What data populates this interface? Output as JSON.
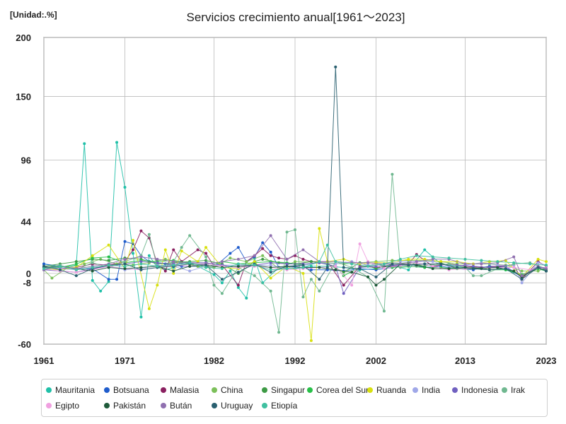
{
  "chart_data": {
    "type": "line",
    "title": "Servicios crecimiento anual[1961～2023]",
    "unit_label": "[Unidad:.%]",
    "xlim": [
      1961,
      2023
    ],
    "ylim": [
      -60,
      200
    ],
    "yticks": [
      "200",
      "150",
      "96",
      "44",
      "0",
      "-8",
      "-60"
    ],
    "ytick_values": [
      200,
      150,
      96,
      44,
      0,
      -8,
      -60
    ],
    "xticks": [
      "1961",
      "1971",
      "1982",
      "1992",
      "2002",
      "2013",
      "2023"
    ],
    "xtick_values": [
      1961,
      1971,
      1982,
      1992,
      2002,
      2013,
      2023
    ],
    "grid": true,
    "legend_position": "bottom",
    "series": [
      {
        "name": "Mauritania",
        "color": "#20c0a8",
        "x": [
          1961,
          1963,
          1965,
          1966,
          1967,
          1968,
          1969,
          1970,
          1971,
          1972,
          1973,
          1974,
          1975,
          1976,
          1977,
          1978,
          1980,
          1982,
          1983,
          1984,
          1985,
          1986,
          1987,
          1988,
          1990,
          1992,
          1994,
          1996,
          1998,
          2000,
          2002,
          2004,
          2006,
          2008,
          2010,
          2012,
          2014,
          2016,
          2018,
          2020,
          2022,
          2023
        ],
        "y": [
          8,
          5,
          7,
          110,
          -6,
          -15,
          -7,
          111,
          73,
          17,
          -37,
          15,
          5,
          3,
          5,
          10,
          6,
          -1,
          -8,
          2,
          -12,
          -21,
          13,
          -8,
          5,
          4,
          6,
          6,
          5,
          3,
          4,
          7,
          3,
          20,
          8,
          6,
          4,
          6,
          3,
          -2,
          4,
          2
        ]
      },
      {
        "name": "Botsuana",
        "color": "#1f5ccc",
        "x": [
          1961,
          1963,
          1965,
          1967,
          1969,
          1970,
          1971,
          1972,
          1973,
          1974,
          1975,
          1976,
          1978,
          1980,
          1982,
          1984,
          1985,
          1986,
          1987,
          1988,
          1989,
          1990,
          1992,
          1994,
          1996,
          1998,
          2000,
          2002,
          2004,
          2006,
          2008,
          2010,
          2012,
          2014,
          2016,
          2018,
          2020,
          2022,
          2023
        ],
        "y": [
          8,
          6,
          4,
          4,
          -5,
          -5,
          27,
          25,
          15,
          10,
          9,
          8,
          6,
          6,
          5,
          17,
          22,
          10,
          14,
          26,
          18,
          5,
          6,
          3,
          3,
          2,
          4,
          3,
          5,
          8,
          5,
          6,
          4,
          3,
          6,
          5,
          -3,
          6,
          3
        ]
      },
      {
        "name": "Malasia",
        "color": "#8a2060",
        "x": [
          1961,
          1963,
          1965,
          1967,
          1969,
          1971,
          1972,
          1973,
          1974,
          1975,
          1976,
          1977,
          1978,
          1980,
          1981,
          1982,
          1983,
          1985,
          1986,
          1987,
          1988,
          1989,
          1990,
          1991,
          1992,
          1993,
          1994,
          1996,
          1998,
          2000,
          2002,
          2004,
          2006,
          2007,
          2009,
          2011,
          2013,
          2015,
          2017,
          2019,
          2020,
          2022,
          2023
        ],
        "y": [
          6,
          4,
          5,
          8,
          7,
          10,
          20,
          36,
          30,
          8,
          2,
          20,
          10,
          20,
          17,
          6,
          7,
          -10,
          10,
          15,
          21,
          15,
          13,
          12,
          15,
          12,
          10,
          10,
          -10,
          6,
          5,
          6,
          8,
          16,
          6,
          8,
          6,
          5,
          6,
          7,
          -5,
          10,
          6
        ]
      },
      {
        "name": "China",
        "color": "#7cc05a",
        "x": [
          1961,
          1962,
          1964,
          1966,
          1968,
          1970,
          1972,
          1974,
          1976,
          1978,
          1980,
          1982,
          1984,
          1986,
          1988,
          1990,
          1992,
          1994,
          1996,
          1998,
          2000,
          2002,
          2004,
          2006,
          2008,
          2010,
          2012,
          2014,
          2016,
          2018,
          2020,
          2022,
          2023
        ],
        "y": [
          3,
          -4,
          5,
          8,
          12,
          8,
          7,
          9,
          12,
          9,
          6,
          5,
          13,
          10,
          15,
          4,
          10,
          10,
          9,
          8,
          9,
          10,
          11,
          11,
          11,
          10,
          8,
          8,
          8,
          7,
          2,
          2,
          5
        ]
      },
      {
        "name": "Singapur",
        "color": "#3d9a45",
        "x": [
          1961,
          1963,
          1965,
          1967,
          1969,
          1971,
          1973,
          1975,
          1977,
          1979,
          1981,
          1983,
          1985,
          1987,
          1988,
          1990,
          1992,
          1994,
          1996,
          1998,
          2000,
          2002,
          2004,
          2006,
          2008,
          2010,
          2012,
          2014,
          2016,
          2018,
          2020,
          2022,
          2023
        ],
        "y": [
          6,
          8,
          10,
          12,
          11,
          13,
          12,
          8,
          9,
          10,
          11,
          8,
          0,
          10,
          12,
          9,
          8,
          10,
          8,
          1,
          9,
          4,
          8,
          9,
          6,
          9,
          4,
          5,
          3,
          4,
          -2,
          4,
          3
        ]
      },
      {
        "name": "Corea del Sur",
        "color": "#28c048",
        "x": [
          1961,
          1963,
          1965,
          1967,
          1969,
          1971,
          1973,
          1975,
          1977,
          1979,
          1981,
          1983,
          1985,
          1987,
          1989,
          1991,
          1993,
          1995,
          1997,
          1998,
          2000,
          2002,
          2004,
          2006,
          2008,
          2010,
          2012,
          2014,
          2016,
          2018,
          2020,
          2022,
          2023
        ],
        "y": [
          4,
          5,
          8,
          13,
          14,
          9,
          11,
          10,
          11,
          9,
          5,
          10,
          8,
          9,
          10,
          9,
          7,
          9,
          6,
          -2,
          5,
          8,
          5,
          6,
          5,
          5,
          4,
          4,
          3,
          3,
          -1,
          4,
          2
        ]
      },
      {
        "name": "Ruanda",
        "color": "#d8e010",
        "x": [
          1961,
          1963,
          1965,
          1967,
          1969,
          1971,
          1972,
          1974,
          1975,
          1976,
          1977,
          1978,
          1980,
          1981,
          1983,
          1985,
          1987,
          1989,
          1991,
          1993,
          1994,
          1995,
          1996,
          1998,
          2000,
          2002,
          2004,
          2006,
          2008,
          2010,
          2012,
          2014,
          2016,
          2018,
          2020,
          2022,
          2023
        ],
        "y": [
          4,
          3,
          5,
          15,
          24,
          4,
          28,
          -30,
          -10,
          20,
          0,
          19,
          10,
          22,
          5,
          4,
          10,
          -4,
          6,
          0,
          -57,
          38,
          10,
          12,
          8,
          9,
          9,
          12,
          12,
          10,
          10,
          8,
          10,
          11,
          -3,
          12,
          10
        ]
      },
      {
        "name": "India",
        "color": "#a0a8e8",
        "x": [
          1961,
          1963,
          1965,
          1967,
          1969,
          1971,
          1973,
          1975,
          1977,
          1979,
          1981,
          1983,
          1985,
          1987,
          1989,
          1991,
          1993,
          1995,
          1997,
          1999,
          2001,
          2003,
          2005,
          2007,
          2009,
          2011,
          2013,
          2015,
          2017,
          2019,
          2020,
          2022,
          2023
        ],
        "y": [
          5,
          4,
          3,
          5,
          6,
          3,
          4,
          7,
          6,
          2,
          6,
          7,
          7,
          7,
          7,
          4,
          7,
          9,
          8,
          10,
          7,
          8,
          10,
          10,
          10,
          6,
          7,
          9,
          7,
          7,
          -8,
          9,
          7
        ]
      },
      {
        "name": "Indonesia",
        "color": "#7060c0",
        "x": [
          1961,
          1963,
          1965,
          1967,
          1969,
          1971,
          1973,
          1975,
          1977,
          1979,
          1981,
          1983,
          1985,
          1987,
          1989,
          1991,
          1993,
          1995,
          1997,
          1998,
          2000,
          2002,
          2004,
          2006,
          2008,
          2010,
          2012,
          2014,
          2016,
          2018,
          2020,
          2022,
          2023
        ],
        "y": [
          3,
          2,
          1,
          4,
          6,
          8,
          10,
          9,
          8,
          9,
          9,
          7,
          5,
          7,
          9,
          8,
          8,
          9,
          6,
          -17,
          5,
          6,
          7,
          7,
          8,
          8,
          7,
          6,
          5,
          6,
          -3,
          5,
          5
        ]
      },
      {
        "name": "Irak",
        "color": "#70b890",
        "x": [
          1961,
          1963,
          1965,
          1967,
          1969,
          1971,
          1973,
          1974,
          1975,
          1977,
          1978,
          1979,
          1981,
          1982,
          1983,
          1985,
          1987,
          1989,
          1990,
          1991,
          1992,
          1993,
          1994,
          1995,
          1997,
          1999,
          2001,
          2003,
          2004,
          2005,
          2007,
          2009,
          2011,
          2013,
          2014,
          2015,
          2017,
          2019,
          2021,
          2023
        ],
        "y": [
          5,
          7,
          3,
          9,
          5,
          10,
          15,
          33,
          5,
          10,
          22,
          32,
          14,
          -10,
          -17,
          5,
          -2,
          -15,
          -50,
          35,
          37,
          -20,
          -5,
          -15,
          10,
          5,
          -3,
          -32,
          84,
          5,
          6,
          7,
          8,
          5,
          -2,
          -2,
          4,
          8,
          9,
          4
        ]
      },
      {
        "name": "Egipto",
        "color": "#f0a0e0",
        "x": [
          1961,
          1963,
          1965,
          1967,
          1969,
          1971,
          1973,
          1975,
          1977,
          1979,
          1981,
          1983,
          1985,
          1987,
          1989,
          1991,
          1993,
          1995,
          1997,
          1999,
          2000,
          2001,
          2003,
          2005,
          2007,
          2009,
          2011,
          2013,
          2015,
          2017,
          2019,
          2021,
          2023
        ],
        "y": [
          4,
          2,
          1,
          3,
          6,
          4,
          3,
          5,
          7,
          6,
          8,
          6,
          5,
          6,
          5,
          3,
          4,
          5,
          6,
          -10,
          25,
          10,
          4,
          7,
          9,
          6,
          3,
          4,
          4,
          5,
          5,
          3,
          5
        ]
      },
      {
        "name": "Pakistán",
        "color": "#1e5a3a",
        "x": [
          1961,
          1963,
          1965,
          1967,
          1969,
          1971,
          1973,
          1975,
          1977,
          1979,
          1981,
          1983,
          1985,
          1987,
          1989,
          1991,
          1993,
          1995,
          1997,
          1999,
          2001,
          2002,
          2003,
          2005,
          2007,
          2009,
          2011,
          2013,
          2015,
          2017,
          2019,
          2020,
          2022,
          2023
        ],
        "y": [
          5,
          6,
          4,
          2,
          5,
          4,
          5,
          6,
          2,
          6,
          7,
          5,
          6,
          7,
          5,
          6,
          5,
          5,
          3,
          1,
          -3,
          -10,
          -5,
          8,
          7,
          4,
          4,
          5,
          4,
          5,
          2,
          -3,
          5,
          2
        ]
      },
      {
        "name": "Bután",
        "color": "#9070b0",
        "x": [
          1961,
          1963,
          1965,
          1967,
          1969,
          1971,
          1973,
          1975,
          1977,
          1979,
          1981,
          1983,
          1985,
          1987,
          1989,
          1991,
          1993,
          1995,
          1997,
          1999,
          2001,
          2003,
          2005,
          2007,
          2009,
          2011,
          2013,
          2015,
          2017,
          2019,
          2020,
          2022,
          2023
        ],
        "y": [
          3,
          6,
          4,
          6,
          8,
          12,
          14,
          12,
          10,
          9,
          8,
          10,
          12,
          15,
          32,
          12,
          20,
          10,
          10,
          9,
          9,
          8,
          8,
          10,
          12,
          12,
          8,
          8,
          9,
          14,
          -2,
          6,
          4
        ]
      },
      {
        "name": "Uruguay",
        "color": "#2a6070",
        "x": [
          1961,
          1963,
          1965,
          1967,
          1969,
          1971,
          1973,
          1975,
          1977,
          1979,
          1981,
          1983,
          1985,
          1987,
          1989,
          1991,
          1993,
          1995,
          1996,
          1997,
          1998,
          2000,
          2002,
          2004,
          2006,
          2008,
          2010,
          2012,
          2014,
          2016,
          2018,
          2020,
          2022,
          2023
        ],
        "y": [
          6,
          3,
          -2,
          4,
          7,
          8,
          3,
          5,
          6,
          8,
          7,
          -5,
          1,
          8,
          1,
          6,
          7,
          -5,
          5,
          175,
          5,
          4,
          -3,
          8,
          7,
          8,
          8,
          5,
          4,
          3,
          4,
          -5,
          5,
          2
        ]
      },
      {
        "name": "Etiopía",
        "color": "#40c0a0",
        "x": [
          1961,
          1963,
          1965,
          1967,
          1969,
          1971,
          1973,
          1975,
          1977,
          1979,
          1981,
          1983,
          1985,
          1987,
          1989,
          1991,
          1993,
          1995,
          1996,
          1997,
          1999,
          2001,
          2003,
          2005,
          2007,
          2009,
          2011,
          2013,
          2015,
          2017,
          2019,
          2021,
          2023
        ],
        "y": [
          4,
          6,
          3,
          5,
          7,
          6,
          8,
          6,
          7,
          9,
          5,
          4,
          8,
          7,
          3,
          4,
          5,
          10,
          24,
          10,
          8,
          6,
          8,
          12,
          15,
          14,
          13,
          12,
          11,
          10,
          9,
          8,
          7
        ]
      }
    ]
  }
}
